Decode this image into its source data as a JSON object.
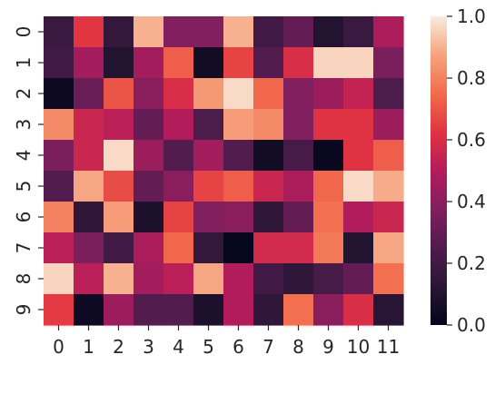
{
  "chart_data": {
    "type": "heatmap",
    "title": "",
    "xlabel": "",
    "ylabel": "",
    "x_categories": [
      "0",
      "1",
      "2",
      "3",
      "4",
      "5",
      "6",
      "7",
      "8",
      "9",
      "10",
      "11"
    ],
    "y_categories": [
      "0",
      "1",
      "2",
      "3",
      "4",
      "5",
      "6",
      "7",
      "8",
      "9"
    ],
    "values": [
      [
        0.18,
        0.63,
        0.16,
        0.9,
        0.38,
        0.38,
        0.9,
        0.2,
        0.3,
        0.1,
        0.18,
        0.48
      ],
      [
        0.2,
        0.46,
        0.1,
        0.46,
        0.72,
        0.05,
        0.66,
        0.26,
        0.6,
        0.96,
        0.96,
        0.36
      ],
      [
        0.03,
        0.32,
        0.7,
        0.4,
        0.6,
        0.85,
        0.97,
        0.74,
        0.38,
        0.44,
        0.54,
        0.24
      ],
      [
        0.82,
        0.56,
        0.52,
        0.3,
        0.5,
        0.24,
        0.86,
        0.82,
        0.38,
        0.62,
        0.62,
        0.44
      ],
      [
        0.36,
        0.56,
        0.97,
        0.44,
        0.26,
        0.46,
        0.26,
        0.05,
        0.22,
        0.02,
        0.62,
        0.72
      ],
      [
        0.26,
        0.88,
        0.68,
        0.3,
        0.4,
        0.66,
        0.72,
        0.56,
        0.48,
        0.74,
        0.97,
        0.89
      ],
      [
        0.8,
        0.14,
        0.86,
        0.08,
        0.66,
        0.38,
        0.4,
        0.14,
        0.3,
        0.76,
        0.5,
        0.56
      ],
      [
        0.52,
        0.36,
        0.2,
        0.48,
        0.74,
        0.16,
        0.01,
        0.58,
        0.58,
        0.78,
        0.1,
        0.88
      ],
      [
        0.96,
        0.52,
        0.9,
        0.46,
        0.52,
        0.88,
        0.5,
        0.2,
        0.14,
        0.22,
        0.3,
        0.76
      ],
      [
        0.64,
        0.04,
        0.44,
        0.26,
        0.26,
        0.08,
        0.5,
        0.14,
        0.76,
        0.4,
        0.6,
        0.12
      ]
    ],
    "vmin": 0.0,
    "vmax": 1.0,
    "colormap": "rocket",
    "colorbar": {
      "ticks": [
        0.0,
        0.2,
        0.4,
        0.6,
        0.8,
        1.0
      ],
      "tick_labels": [
        "0.0",
        "0.2",
        "0.4",
        "0.6",
        "0.8",
        "1.0"
      ]
    }
  }
}
